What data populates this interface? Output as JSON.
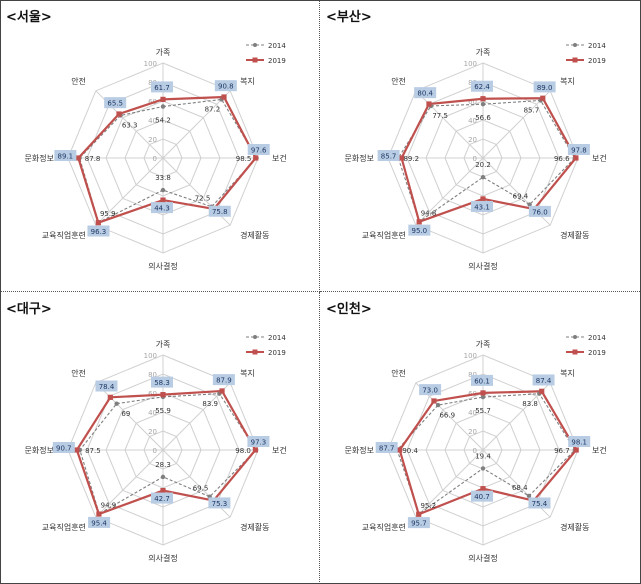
{
  "colors": {
    "series_2014": "#7f7f7f",
    "series_2019": "#c0504d",
    "label_box_2019": "#b8cce4",
    "grid": "#d0d0d0",
    "tick_text": "#a6a6a6"
  },
  "chart_data": [
    {
      "type": "radar",
      "title": "<서울>",
      "axes": [
        "가족",
        "복지",
        "보건",
        "경제활동",
        "의사결정",
        "교육직업훈련",
        "문화정보",
        "안전"
      ],
      "rlim": [
        0,
        100
      ],
      "ticks": [
        "0",
        "20",
        "40",
        "60",
        "80",
        "100"
      ],
      "legend": "top-right",
      "series": [
        {
          "name": "2014",
          "values": [
            54.2,
            87.2,
            98.5,
            72.5,
            33.8,
            95.9,
            87.8,
            63.3
          ],
          "labels": [
            "54.2",
            "87.2",
            "98.5",
            "72.5",
            "33.8",
            "95.9",
            "87.8",
            "63.3"
          ]
        },
        {
          "name": "2019",
          "values": [
            61.7,
            90.8,
            97.6,
            75.8,
            44.3,
            96.3,
            89.1,
            65.5
          ],
          "labels": [
            "61.7",
            "90.8",
            "97.6",
            "75.8",
            "44.3",
            "96.3",
            "89.1",
            "65.5"
          ]
        }
      ]
    },
    {
      "type": "radar",
      "title": "<부산>",
      "axes": [
        "가족",
        "복지",
        "보건",
        "경제활동",
        "의사결정",
        "교육직업훈련",
        "문화정보",
        "안전"
      ],
      "rlim": [
        0,
        100
      ],
      "ticks": [
        "0",
        "20",
        "40",
        "60",
        "80",
        "100"
      ],
      "legend": "top-right",
      "series": [
        {
          "name": "2014",
          "values": [
            56.6,
            85.7,
            96.6,
            69.4,
            20.2,
            94.8,
            89.2,
            77.5
          ],
          "labels": [
            "56.6",
            "85.7",
            "96.6",
            "69.4",
            "20.2",
            "94.8",
            "89.2",
            "77.5"
          ]
        },
        {
          "name": "2019",
          "values": [
            62.4,
            89.0,
            97.8,
            76.0,
            43.1,
            95.0,
            85.7,
            80.4
          ],
          "labels": [
            "62.4",
            "89.0",
            "97.8",
            "76.0",
            "43.1",
            "95.0",
            "85.7",
            "80.4"
          ]
        }
      ]
    },
    {
      "type": "radar",
      "title": "<대구>",
      "axes": [
        "가족",
        "복지",
        "보건",
        "경제활동",
        "의사결정",
        "교육직업훈련",
        "문화정보",
        "안전"
      ],
      "rlim": [
        0,
        100
      ],
      "ticks": [
        "0",
        "20",
        "40",
        "60",
        "80",
        "100"
      ],
      "legend": "top-right",
      "series": [
        {
          "name": "2014",
          "values": [
            55.9,
            83.9,
            98.0,
            69.5,
            28.3,
            94.9,
            87.5,
            69.0
          ],
          "labels": [
            "55.9",
            "83.9",
            "98.0",
            "69.5",
            "28.3",
            "94.9",
            "87.5",
            "69"
          ]
        },
        {
          "name": "2019",
          "values": [
            58.3,
            87.9,
            97.3,
            75.3,
            42.7,
            95.4,
            90.7,
            78.4
          ],
          "labels": [
            "58.3",
            "87.9",
            "97.3",
            "75.3",
            "42.7",
            "95.4",
            "90.7",
            "78.4"
          ]
        }
      ]
    },
    {
      "type": "radar",
      "title": "<인천>",
      "axes": [
        "가족",
        "복지",
        "보건",
        "경제활동",
        "의사결정",
        "교육직업훈련",
        "문화정보",
        "안전"
      ],
      "rlim": [
        0,
        100
      ],
      "ticks": [
        "0",
        "20",
        "40",
        "60",
        "80",
        "100"
      ],
      "legend": "top-right",
      "series": [
        {
          "name": "2014",
          "values": [
            55.7,
            83.8,
            96.7,
            68.4,
            19.4,
            95.2,
            90.4,
            66.9
          ],
          "labels": [
            "55.7",
            "83.8",
            "96.7",
            "68.4",
            "19.4",
            "95.2",
            "90.4",
            "66.9"
          ]
        },
        {
          "name": "2019",
          "values": [
            60.1,
            87.4,
            98.1,
            75.4,
            40.7,
            95.7,
            87.7,
            73.0
          ],
          "labels": [
            "60.1",
            "87.4",
            "98.1",
            "75.4",
            "40.7",
            "95.7",
            "87.7",
            "73.0"
          ]
        }
      ]
    }
  ]
}
